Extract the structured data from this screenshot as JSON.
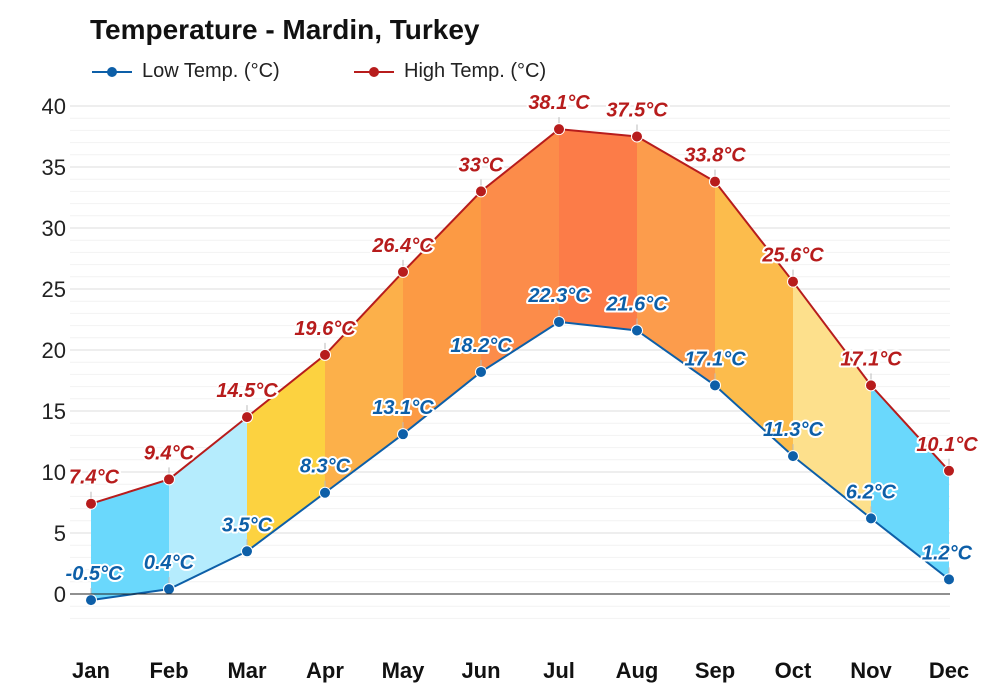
{
  "chart_data": {
    "type": "line",
    "title": "Temperature - Mardin, Turkey",
    "xlabel": "",
    "ylabel": "",
    "categories": [
      "Jan",
      "Feb",
      "Mar",
      "Apr",
      "May",
      "Jun",
      "Jul",
      "Aug",
      "Sep",
      "Oct",
      "Nov",
      "Dec"
    ],
    "series": [
      {
        "name": "Low Temp. (°C)",
        "color": "#0d5fa8",
        "values": [
          -0.5,
          0.4,
          3.5,
          8.3,
          13.1,
          18.2,
          22.3,
          21.6,
          17.1,
          11.3,
          6.2,
          1.2
        ],
        "labels": [
          "-0.5°C",
          "0.4°C",
          "3.5°C",
          "8.3°C",
          "13.1°C",
          "18.2°C",
          "22.3°C",
          "21.6°C",
          "17.1°C",
          "11.3°C",
          "6.2°C",
          "1.2°C"
        ]
      },
      {
        "name": "High Temp. (°C)",
        "color": "#b71c1c",
        "values": [
          7.4,
          9.4,
          14.5,
          19.6,
          26.4,
          33,
          38.1,
          37.5,
          33.8,
          25.6,
          17.1,
          10.1
        ],
        "labels": [
          "7.4°C",
          "9.4°C",
          "14.5°C",
          "19.6°C",
          "26.4°C",
          "33°C",
          "38.1°C",
          "37.5°C",
          "33.8°C",
          "25.6°C",
          "17.1°C",
          "10.1°C"
        ]
      }
    ],
    "band_colors": [
      "#6ad8fc",
      "#b5ecfd",
      "#fcd240",
      "#fcb04a",
      "#fc9a44",
      "#fc8c4a",
      "#fc7c48",
      "#fc9c4c",
      "#fcbc4c",
      "#fde08c",
      "#6ad8fc"
    ],
    "yticks": [
      0,
      5,
      10,
      15,
      20,
      25,
      30,
      35,
      40
    ],
    "ylim": [
      -2.5,
      40
    ],
    "grid": true,
    "legend": "top-left"
  }
}
